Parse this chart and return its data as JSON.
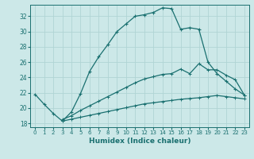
{
  "xlabel": "Humidex (Indice chaleur)",
  "bg_color": "#cce8e8",
  "grid_color": "#b0d4d4",
  "line_color": "#1a7070",
  "xlim": [
    -0.5,
    23.5
  ],
  "ylim": [
    17.5,
    33.5
  ],
  "xticks": [
    0,
    1,
    2,
    3,
    4,
    5,
    6,
    7,
    8,
    9,
    10,
    11,
    12,
    13,
    14,
    15,
    16,
    17,
    18,
    19,
    20,
    21,
    22,
    23
  ],
  "yticks": [
    18,
    20,
    22,
    24,
    26,
    28,
    30,
    32
  ],
  "line1_x": [
    0,
    1,
    2,
    3,
    4,
    5,
    6,
    7,
    8,
    9,
    10,
    11,
    12,
    13,
    14,
    15,
    16,
    17,
    18,
    19,
    20,
    21,
    22,
    23
  ],
  "line1_y": [
    21.8,
    20.5,
    19.3,
    18.3,
    19.5,
    21.9,
    24.8,
    26.7,
    28.3,
    30.0,
    31.0,
    32.0,
    32.2,
    32.5,
    33.1,
    33.0,
    30.3,
    30.5,
    30.3,
    26.0,
    24.5,
    23.5,
    22.5,
    21.7
  ],
  "line2_x": [
    3,
    4,
    5,
    6,
    7,
    8,
    9,
    10,
    11,
    12,
    13,
    14,
    15,
    16,
    17,
    18,
    19,
    20,
    21,
    22,
    23
  ],
  "line2_y": [
    18.5,
    19.0,
    19.7,
    20.3,
    20.9,
    21.5,
    22.1,
    22.7,
    23.3,
    23.8,
    24.1,
    24.4,
    24.5,
    25.1,
    24.5,
    25.8,
    25.0,
    25.0,
    24.3,
    23.7,
    21.7
  ],
  "line3_x": [
    3,
    4,
    5,
    6,
    7,
    8,
    9,
    10,
    11,
    12,
    13,
    14,
    15,
    16,
    17,
    18,
    19,
    20,
    21,
    22,
    23
  ],
  "line3_y": [
    18.3,
    18.55,
    18.8,
    19.05,
    19.3,
    19.55,
    19.8,
    20.05,
    20.3,
    20.55,
    20.7,
    20.85,
    21.0,
    21.15,
    21.25,
    21.35,
    21.5,
    21.65,
    21.5,
    21.35,
    21.2
  ]
}
